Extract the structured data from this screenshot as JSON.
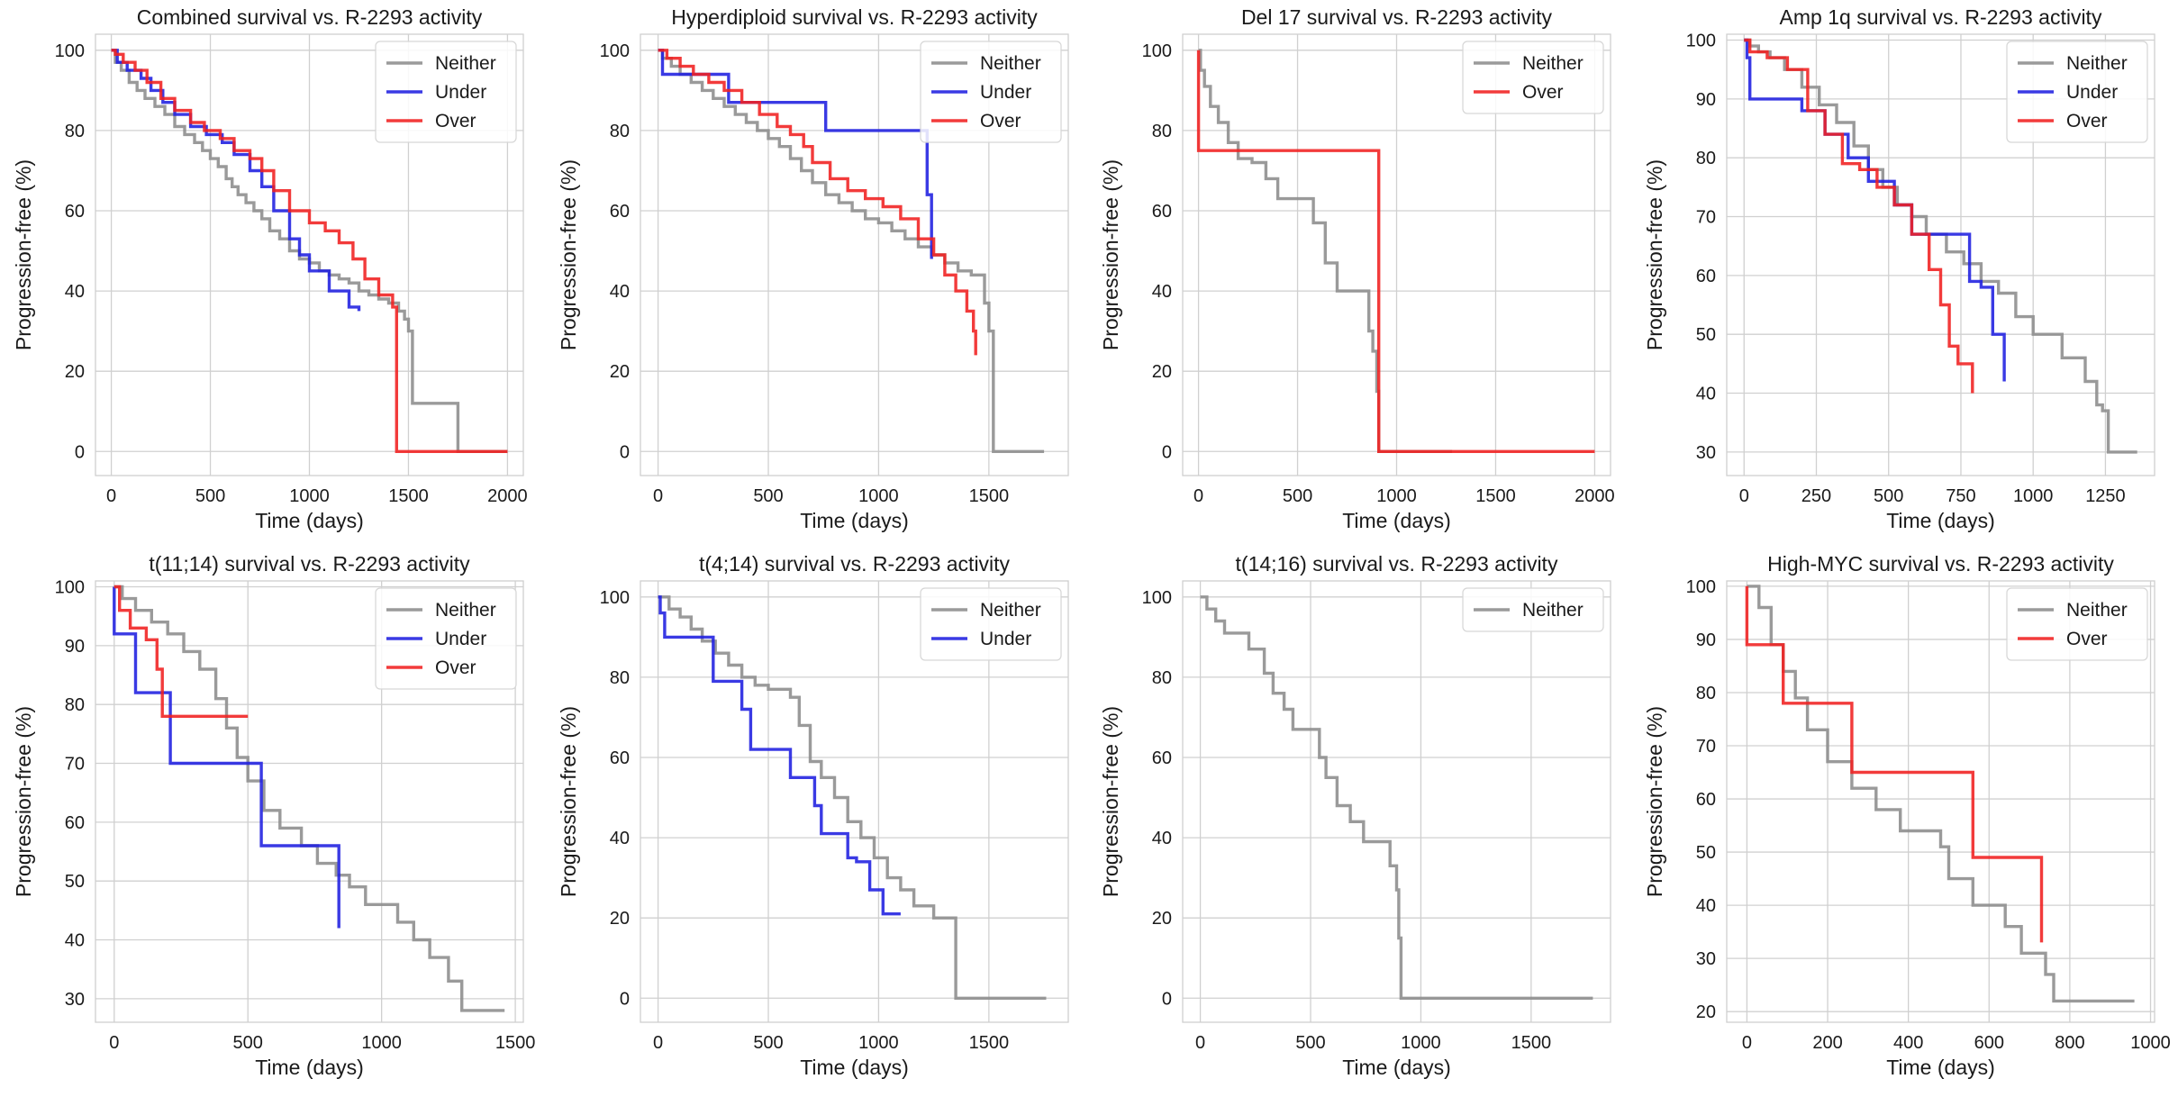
{
  "figure": {
    "colors": {
      "Neither": "#8c8c8c",
      "Under": "#1f1fe0",
      "Over": "#f02020"
    }
  },
  "chart_data": [
    {
      "type": "line",
      "title": "Combined survival vs. R-2293 activity",
      "xlabel": "Time (days)",
      "ylabel": "Progression-free (%)",
      "xlim": [
        -80,
        2080
      ],
      "ylim": [
        -6,
        104
      ],
      "xticks": [
        0,
        500,
        1000,
        1500,
        2000
      ],
      "yticks": [
        0,
        20,
        40,
        60,
        80,
        100
      ],
      "legend": [
        "Neither",
        "Under",
        "Over"
      ],
      "series": [
        {
          "name": "Neither",
          "x": [
            0,
            20,
            50,
            90,
            130,
            170,
            220,
            270,
            320,
            370,
            420,
            460,
            500,
            540,
            580,
            610,
            640,
            680,
            720,
            760,
            800,
            850,
            900,
            950,
            1000,
            1050,
            1100,
            1150,
            1200,
            1250,
            1300,
            1350,
            1400,
            1450,
            1480,
            1500,
            1520,
            1750,
            1750,
            2000
          ],
          "y": [
            100,
            97,
            95,
            92,
            90,
            88,
            86,
            84,
            81,
            79,
            77,
            75,
            73,
            71,
            68,
            66,
            64,
            62,
            60,
            58,
            55,
            53,
            50,
            48,
            47,
            45,
            44,
            43,
            42,
            40,
            39,
            38,
            37,
            35,
            33,
            30,
            12,
            12,
            0,
            0
          ]
        },
        {
          "name": "Under",
          "x": [
            0,
            30,
            80,
            150,
            200,
            260,
            320,
            400,
            480,
            560,
            620,
            700,
            760,
            820,
            900,
            950,
            1000,
            1100,
            1200,
            1250
          ],
          "y": [
            100,
            97,
            95,
            93,
            90,
            87,
            84,
            81,
            79,
            77,
            74,
            70,
            66,
            60,
            53,
            49,
            45,
            40,
            36,
            35
          ]
        },
        {
          "name": "Over",
          "x": [
            0,
            20,
            60,
            120,
            180,
            250,
            320,
            400,
            470,
            550,
            620,
            700,
            760,
            820,
            900,
            1000,
            1080,
            1150,
            1220,
            1280,
            1350,
            1420,
            1440,
            1440,
            2000
          ],
          "y": [
            100,
            99,
            97,
            95,
            92,
            88,
            85,
            82,
            80,
            78,
            75,
            73,
            70,
            65,
            60,
            57,
            55,
            52,
            48,
            43,
            39,
            36,
            34,
            0,
            0
          ]
        }
      ]
    },
    {
      "type": "line",
      "title": "Hyperdiploid survival vs. R-2293 activity",
      "xlabel": "Time (days)",
      "ylabel": "Progression-free (%)",
      "xlim": [
        -80,
        1860
      ],
      "ylim": [
        -6,
        104
      ],
      "xticks": [
        0,
        500,
        1000,
        1500
      ],
      "yticks": [
        0,
        20,
        40,
        60,
        80,
        100
      ],
      "legend": [
        "Neither",
        "Under",
        "Over"
      ],
      "series": [
        {
          "name": "Neither",
          "x": [
            0,
            20,
            60,
            100,
            150,
            200,
            250,
            300,
            350,
            400,
            450,
            500,
            550,
            600,
            650,
            700,
            760,
            820,
            880,
            940,
            1000,
            1060,
            1120,
            1180,
            1240,
            1300,
            1360,
            1420,
            1480,
            1500,
            1520,
            1750
          ],
          "y": [
            100,
            98,
            96,
            94,
            92,
            90,
            88,
            86,
            84,
            82,
            80,
            78,
            76,
            73,
            70,
            67,
            64,
            62,
            60,
            58,
            57,
            55,
            53,
            51,
            49,
            47,
            45,
            44,
            37,
            30,
            0,
            0
          ]
        },
        {
          "name": "Under",
          "x": [
            0,
            20,
            320,
            320,
            760,
            760,
            1220,
            1220,
            1240
          ],
          "y": [
            100,
            94,
            94,
            87,
            87,
            80,
            80,
            64,
            48
          ]
        },
        {
          "name": "Over",
          "x": [
            0,
            40,
            100,
            160,
            230,
            300,
            380,
            460,
            540,
            600,
            660,
            700,
            780,
            860,
            940,
            1020,
            1100,
            1180,
            1250,
            1300,
            1350,
            1400,
            1430,
            1440
          ],
          "y": [
            100,
            98,
            96,
            94,
            92,
            90,
            87,
            84,
            81,
            79,
            76,
            72,
            68,
            65,
            63,
            61,
            58,
            53,
            49,
            44,
            40,
            35,
            30,
            24
          ]
        }
      ]
    },
    {
      "type": "line",
      "title": "Del 17 survival vs. R-2293 activity",
      "xlabel": "Time (days)",
      "ylabel": "Progression-free (%)",
      "xlim": [
        -80,
        2080
      ],
      "ylim": [
        -6,
        104
      ],
      "xticks": [
        0,
        500,
        1000,
        1500,
        2000
      ],
      "yticks": [
        0,
        20,
        40,
        60,
        80,
        100
      ],
      "legend": [
        "Neither",
        "Over"
      ],
      "series": [
        {
          "name": "Neither",
          "x": [
            0,
            10,
            30,
            60,
            100,
            150,
            200,
            270,
            340,
            400,
            500,
            580,
            640,
            700,
            800,
            860,
            880,
            900,
            910,
            1280
          ],
          "y": [
            100,
            95,
            91,
            86,
            82,
            77,
            73,
            72,
            68,
            63,
            63,
            57,
            47,
            40,
            40,
            30,
            25,
            15,
            0,
            0
          ]
        },
        {
          "name": "Over",
          "x": [
            0,
            0,
            910,
            910,
            2000
          ],
          "y": [
            100,
            75,
            75,
            0,
            0
          ]
        }
      ]
    },
    {
      "type": "line",
      "title": "Amp 1q survival vs. R-2293 activity",
      "xlabel": "Time (days)",
      "ylabel": "Progression-free (%)",
      "xlim": [
        -60,
        1420
      ],
      "ylim": [
        26,
        101
      ],
      "xticks": [
        0,
        250,
        500,
        750,
        1000,
        1250
      ],
      "yticks": [
        30,
        40,
        50,
        60,
        70,
        80,
        90,
        100
      ],
      "legend": [
        "Neither",
        "Under",
        "Over"
      ],
      "series": [
        {
          "name": "Neither",
          "x": [
            0,
            20,
            50,
            90,
            140,
            200,
            260,
            320,
            380,
            430,
            480,
            530,
            580,
            630,
            700,
            760,
            820,
            880,
            940,
            1000,
            1100,
            1180,
            1220,
            1240,
            1260,
            1360
          ],
          "y": [
            100,
            99,
            98,
            97,
            95,
            92,
            89,
            86,
            82,
            78,
            75,
            72,
            70,
            67,
            64,
            62,
            59,
            57,
            53,
            50,
            46,
            42,
            38,
            37,
            30,
            30
          ]
        },
        {
          "name": "Under",
          "x": [
            0,
            10,
            20,
            120,
            200,
            280,
            360,
            430,
            520,
            580,
            680,
            750,
            780,
            820,
            860,
            900
          ],
          "y": [
            100,
            97,
            90,
            90,
            88,
            84,
            80,
            76,
            72,
            67,
            67,
            67,
            59,
            58,
            50,
            42
          ]
        },
        {
          "name": "Over",
          "x": [
            0,
            20,
            80,
            150,
            220,
            280,
            340,
            400,
            460,
            520,
            580,
            640,
            680,
            710,
            740,
            790
          ],
          "y": [
            100,
            98,
            97,
            95,
            88,
            84,
            79,
            78,
            75,
            72,
            67,
            61,
            55,
            48,
            45,
            40
          ]
        }
      ]
    },
    {
      "type": "line",
      "title": "t(11;14) survival vs. R-2293 activity",
      "xlabel": "Time (days)",
      "ylabel": "Progression-free (%)",
      "xlim": [
        -70,
        1530
      ],
      "ylim": [
        26,
        101
      ],
      "xticks": [
        0,
        500,
        1000,
        1500
      ],
      "yticks": [
        30,
        40,
        50,
        60,
        70,
        80,
        90,
        100
      ],
      "legend": [
        "Neither",
        "Under",
        "Over"
      ],
      "series": [
        {
          "name": "Neither",
          "x": [
            0,
            30,
            80,
            140,
            200,
            260,
            320,
            380,
            420,
            460,
            500,
            560,
            620,
            700,
            760,
            830,
            880,
            940,
            1000,
            1060,
            1120,
            1180,
            1250,
            1300,
            1460
          ],
          "y": [
            100,
            98,
            96,
            94,
            92,
            89,
            86,
            81,
            76,
            71,
            67,
            62,
            59,
            56,
            53,
            51,
            49,
            46,
            46,
            43,
            40,
            37,
            33,
            28,
            28
          ]
        },
        {
          "name": "Under",
          "x": [
            0,
            0,
            80,
            80,
            210,
            210,
            550,
            550,
            830,
            840
          ],
          "y": [
            100,
            92,
            92,
            82,
            82,
            70,
            70,
            56,
            56,
            42
          ]
        },
        {
          "name": "Over",
          "x": [
            0,
            20,
            60,
            120,
            160,
            180,
            500
          ],
          "y": [
            100,
            96,
            93,
            91,
            86,
            78,
            78
          ]
        }
      ]
    },
    {
      "type": "line",
      "title": "t(4;14) survival vs. R-2293 activity",
      "xlabel": "Time (days)",
      "ylabel": "Progression-free (%)",
      "xlim": [
        -80,
        1860
      ],
      "ylim": [
        -6,
        104
      ],
      "xticks": [
        0,
        500,
        1000,
        1500
      ],
      "yticks": [
        0,
        20,
        40,
        60,
        80,
        100
      ],
      "legend": [
        "Neither",
        "Under"
      ],
      "series": [
        {
          "name": "Neither",
          "x": [
            0,
            50,
            100,
            150,
            200,
            260,
            320,
            380,
            440,
            500,
            560,
            600,
            640,
            690,
            740,
            800,
            860,
            920,
            980,
            1040,
            1100,
            1160,
            1250,
            1350,
            1350,
            1760
          ],
          "y": [
            100,
            97,
            95,
            92,
            89,
            86,
            83,
            80,
            78,
            77,
            77,
            75,
            68,
            59,
            55,
            50,
            44,
            40,
            35,
            30,
            27,
            23,
            20,
            20,
            0,
            0
          ]
        },
        {
          "name": "Under",
          "x": [
            0,
            10,
            30,
            180,
            250,
            360,
            380,
            420,
            600,
            600,
            710,
            740,
            860,
            900,
            960,
            1020,
            1060,
            1100
          ],
          "y": [
            100,
            96,
            90,
            90,
            79,
            79,
            72,
            62,
            62,
            55,
            48,
            41,
            35,
            34,
            27,
            21,
            21,
            21
          ]
        }
      ]
    },
    {
      "type": "line",
      "title": "t(14;16) survival vs. R-2293 activity",
      "xlabel": "Time (days)",
      "ylabel": "Progression-free (%)",
      "xlim": [
        -80,
        1860
      ],
      "ylim": [
        -6,
        104
      ],
      "xticks": [
        0,
        500,
        1000,
        1500
      ],
      "yticks": [
        0,
        20,
        40,
        60,
        80,
        100
      ],
      "legend": [
        "Neither"
      ],
      "series": [
        {
          "name": "Neither",
          "x": [
            0,
            30,
            70,
            110,
            220,
            290,
            330,
            380,
            420,
            480,
            540,
            570,
            620,
            680,
            740,
            800,
            860,
            890,
            900,
            910,
            1780
          ],
          "y": [
            100,
            97,
            94,
            91,
            87,
            81,
            76,
            72,
            67,
            67,
            60,
            55,
            48,
            44,
            39,
            39,
            33,
            27,
            15,
            0,
            0
          ]
        }
      ]
    },
    {
      "type": "line",
      "title": "High-MYC survival vs. R-2293 activity",
      "xlabel": "Time (days)",
      "ylabel": "Progression-free (%)",
      "xlim": [
        -50,
        1010
      ],
      "ylim": [
        18,
        101
      ],
      "xticks": [
        0,
        200,
        400,
        600,
        800,
        1000
      ],
      "yticks": [
        20,
        30,
        40,
        50,
        60,
        70,
        80,
        90,
        100
      ],
      "legend": [
        "Neither",
        "Over"
      ],
      "series": [
        {
          "name": "Neither",
          "x": [
            0,
            30,
            60,
            90,
            120,
            150,
            200,
            260,
            320,
            380,
            480,
            500,
            560,
            640,
            680,
            740,
            760,
            960
          ],
          "y": [
            100,
            96,
            89,
            84,
            79,
            73,
            67,
            62,
            58,
            54,
            51,
            45,
            40,
            36,
            31,
            27,
            22,
            22
          ]
        },
        {
          "name": "Over",
          "x": [
            0,
            0,
            90,
            90,
            260,
            260,
            560,
            560,
            730,
            730
          ],
          "y": [
            100,
            89,
            89,
            78,
            78,
            65,
            65,
            49,
            49,
            33
          ]
        }
      ]
    }
  ]
}
